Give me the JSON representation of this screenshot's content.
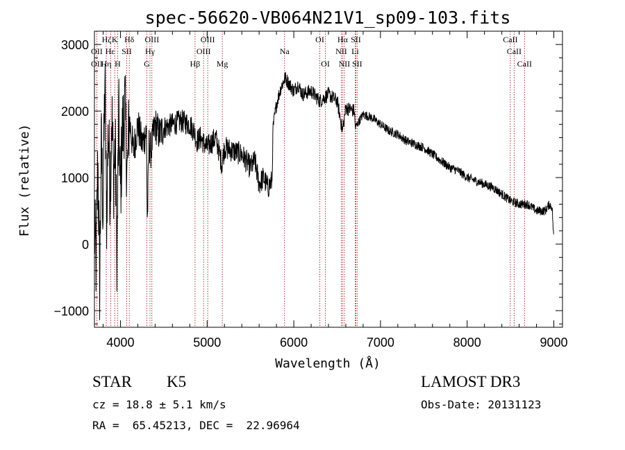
{
  "chart_data": {
    "type": "line",
    "title": "spec-56620-VB064N21V1_sp09-103.fits",
    "xlabel": "Wavelength (Å)",
    "ylabel": "Flux (relative)",
    "xlim": [
      3700,
      9100
    ],
    "ylim": [
      -1250,
      3200
    ],
    "xticks": [
      4000,
      5000,
      6000,
      7000,
      8000,
      9000
    ],
    "xtick_labels": [
      "4000",
      "5000",
      "6000",
      "7000",
      "8000",
      "9000"
    ],
    "yticks": [
      -1000,
      0,
      1000,
      2000,
      3000
    ],
    "ytick_labels": [
      "−1000",
      "0",
      "1000",
      "2000",
      "3000"
    ],
    "grid": false,
    "series": [
      {
        "name": "spectrum",
        "anchors": [
          [
            3700,
            200
          ],
          [
            3720,
            -300
          ],
          [
            3740,
            1300
          ],
          [
            3760,
            -600
          ],
          [
            3780,
            1500
          ],
          [
            3800,
            500
          ],
          [
            3820,
            2500
          ],
          [
            3840,
            400
          ],
          [
            3860,
            1800
          ],
          [
            3880,
            800
          ],
          [
            3900,
            2000
          ],
          [
            3920,
            1000
          ],
          [
            3940,
            1500
          ],
          [
            3960,
            -200
          ],
          [
            3980,
            1900
          ],
          [
            4000,
            800
          ],
          [
            4020,
            1600
          ],
          [
            4050,
            2100
          ],
          [
            4080,
            1000
          ],
          [
            4100,
            1900
          ],
          [
            4150,
            1400
          ],
          [
            4200,
            1800
          ],
          [
            4250,
            1500
          ],
          [
            4300,
            1700
          ],
          [
            4310,
            300
          ],
          [
            4330,
            1500
          ],
          [
            4350,
            1400
          ],
          [
            4400,
            1800
          ],
          [
            4450,
            1650
          ],
          [
            4500,
            1750
          ],
          [
            4600,
            1800
          ],
          [
            4700,
            1850
          ],
          [
            4800,
            1800
          ],
          [
            4850,
            1700
          ],
          [
            4880,
            1550
          ],
          [
            4920,
            1600
          ],
          [
            5000,
            1450
          ],
          [
            5100,
            1600
          ],
          [
            5170,
            1200
          ],
          [
            5200,
            1450
          ],
          [
            5300,
            1400
          ],
          [
            5400,
            1350
          ],
          [
            5500,
            1150
          ],
          [
            5550,
            1250
          ],
          [
            5600,
            900
          ],
          [
            5650,
            1000
          ],
          [
            5700,
            850
          ],
          [
            5750,
            950
          ],
          [
            5760,
            1750
          ],
          [
            5800,
            2100
          ],
          [
            5850,
            2350
          ],
          [
            5900,
            2500
          ],
          [
            5950,
            2400
          ],
          [
            6000,
            2300
          ],
          [
            6050,
            2400
          ],
          [
            6100,
            2250
          ],
          [
            6200,
            2300
          ],
          [
            6300,
            2150
          ],
          [
            6400,
            2250
          ],
          [
            6500,
            2150
          ],
          [
            6563,
            1700
          ],
          [
            6600,
            2050
          ],
          [
            6700,
            2000
          ],
          [
            6708,
            1750
          ],
          [
            6800,
            1950
          ],
          [
            6900,
            1900
          ],
          [
            7000,
            1800
          ],
          [
            7100,
            1700
          ],
          [
            7200,
            1650
          ],
          [
            7300,
            1550
          ],
          [
            7400,
            1500
          ],
          [
            7500,
            1450
          ],
          [
            7600,
            1350
          ],
          [
            7700,
            1250
          ],
          [
            7800,
            1150
          ],
          [
            7900,
            1100
          ],
          [
            8000,
            1000
          ],
          [
            8100,
            950
          ],
          [
            8200,
            900
          ],
          [
            8300,
            850
          ],
          [
            8400,
            750
          ],
          [
            8500,
            650
          ],
          [
            8600,
            600
          ],
          [
            8700,
            600
          ],
          [
            8800,
            500
          ],
          [
            8900,
            500
          ],
          [
            8950,
            600
          ],
          [
            8980,
            550
          ],
          [
            9000,
            50
          ]
        ]
      }
    ],
    "lines": [
      {
        "name": "OII",
        "x": 3727
      },
      {
        "name": "Hη",
        "x": 3836
      },
      {
        "name": "Hζ",
        "x": 3889
      },
      {
        "name": "CaII K",
        "x": 3934
      },
      {
        "name": "CaII H / Hε",
        "x": 3968
      },
      {
        "name": "SII",
        "x": 4072
      },
      {
        "name": "Hδ",
        "x": 4102
      },
      {
        "name": "G band",
        "x": 4305
      },
      {
        "name": "Hγ",
        "x": 4341
      },
      {
        "name": "OIII 4363",
        "x": 4363
      },
      {
        "name": "Hβ",
        "x": 4861
      },
      {
        "name": "OIII 4959",
        "x": 4959
      },
      {
        "name": "OIII 5007",
        "x": 5007
      },
      {
        "name": "Mg",
        "x": 5175
      },
      {
        "name": "Na",
        "x": 5893
      },
      {
        "name": "OI 6300",
        "x": 6300
      },
      {
        "name": "OI 6364",
        "x": 6364
      },
      {
        "name": "NII 6548",
        "x": 6548
      },
      {
        "name": "Hα",
        "x": 6563
      },
      {
        "name": "NII 6583",
        "x": 6583
      },
      {
        "name": "Li",
        "x": 6708
      },
      {
        "name": "SII 6716",
        "x": 6716
      },
      {
        "name": "SII 6731",
        "x": 6731
      },
      {
        "name": "CaII 8498",
        "x": 8498
      },
      {
        "name": "CaII 8542",
        "x": 8542
      },
      {
        "name": "CaII 8662",
        "x": 8662
      }
    ],
    "line_labels": [
      {
        "text": "Hζ",
        "x": 3840,
        "row": 1
      },
      {
        "text": "K",
        "x": 3934,
        "row": 1
      },
      {
        "text": "Hδ",
        "x": 4102,
        "row": 1
      },
      {
        "text": "OIII",
        "x": 4363,
        "row": 1
      },
      {
        "text": "OIII",
        "x": 5007,
        "row": 1
      },
      {
        "text": "OI",
        "x": 6300,
        "row": 1
      },
      {
        "text": "Hα",
        "x": 6563,
        "row": 1
      },
      {
        "text": "SII",
        "x": 6716,
        "row": 1
      },
      {
        "text": "CaII",
        "x": 8498,
        "row": 1
      },
      {
        "text": "OII",
        "x": 3727,
        "row": 2
      },
      {
        "text": "Hε",
        "x": 3880,
        "row": 2
      },
      {
        "text": "SII",
        "x": 4072,
        "row": 2
      },
      {
        "text": "Hγ",
        "x": 4341,
        "row": 2
      },
      {
        "text": "OIII",
        "x": 4959,
        "row": 2
      },
      {
        "text": "Na",
        "x": 5893,
        "row": 2
      },
      {
        "text": "NII",
        "x": 6548,
        "row": 2
      },
      {
        "text": "Li",
        "x": 6708,
        "row": 2
      },
      {
        "text": "CaII",
        "x": 8542,
        "row": 2
      },
      {
        "text": "OII",
        "x": 3727,
        "row": 3
      },
      {
        "text": "Hη",
        "x": 3836,
        "row": 3
      },
      {
        "text": "H",
        "x": 3968,
        "row": 3
      },
      {
        "text": "G",
        "x": 4305,
        "row": 3
      },
      {
        "text": "Hβ",
        "x": 4861,
        "row": 3
      },
      {
        "text": "Mg",
        "x": 5175,
        "row": 3
      },
      {
        "text": "OI",
        "x": 6364,
        "row": 3
      },
      {
        "text": "NII",
        "x": 6583,
        "row": 3
      },
      {
        "text": "SII",
        "x": 6731,
        "row": 3
      },
      {
        "text": "CaII",
        "x": 8662,
        "row": 3
      }
    ]
  },
  "info": {
    "class": "STAR",
    "subclass": "K5",
    "survey": "LAMOST DR3",
    "cz": "cz = 18.8 ± 5.1 km/s",
    "obs_date": "Obs-Date: 20131123",
    "radec": "RA =  65.45213, DEC =  22.96964"
  },
  "colors": {
    "line_marker": "#a00000",
    "spectrum": "#000000",
    "axes": "#000000"
  }
}
